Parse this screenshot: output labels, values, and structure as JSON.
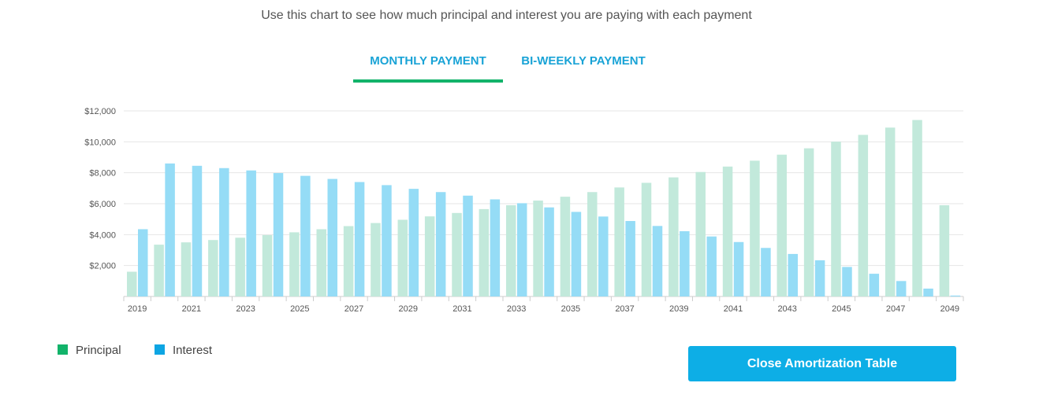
{
  "intro_text": "Use this chart to see how much principal and interest you are paying with each payment",
  "tabs": [
    {
      "label": "MONTHLY PAYMENT",
      "active": true
    },
    {
      "label": "BI-WEEKLY PAYMENT",
      "active": false
    }
  ],
  "legend": [
    {
      "label": "Principal",
      "color": "#12b36a"
    },
    {
      "label": "Interest",
      "color": "#0da5e3"
    }
  ],
  "close_button": "Close Amortization Table",
  "colors": {
    "principal_bar": "#c2e9db",
    "interest_bar": "#95dcf6",
    "accent": "#12b36a",
    "tab_text": "#19a3d6"
  },
  "chart_data": {
    "type": "bar",
    "categories": [
      "2019",
      "2020",
      "2021",
      "2022",
      "2023",
      "2024",
      "2025",
      "2026",
      "2027",
      "2028",
      "2029",
      "2030",
      "2031",
      "2032",
      "2033",
      "2034",
      "2035",
      "2036",
      "2037",
      "2038",
      "2039",
      "2040",
      "2041",
      "2042",
      "2043",
      "2044",
      "2045",
      "2046",
      "2047",
      "2048",
      "2049"
    ],
    "tick_labels": [
      "2019",
      "2021",
      "2023",
      "2025",
      "2027",
      "2029",
      "2031",
      "2033",
      "2035",
      "2037",
      "2039",
      "2041",
      "2043",
      "2045",
      "2047",
      "2049"
    ],
    "series": [
      {
        "name": "Principal",
        "values": [
          1600,
          3350,
          3500,
          3650,
          3800,
          3970,
          4150,
          4350,
          4550,
          4750,
          4960,
          5180,
          5400,
          5650,
          5900,
          6200,
          6450,
          6750,
          7050,
          7350,
          7700,
          8050,
          8400,
          8780,
          9170,
          9580,
          10010,
          10450,
          10920,
          11410,
          5900
        ]
      },
      {
        "name": "Interest",
        "values": [
          4350,
          8600,
          8450,
          8300,
          8150,
          7980,
          7800,
          7600,
          7400,
          7200,
          6960,
          6750,
          6520,
          6280,
          6030,
          5760,
          5470,
          5170,
          4880,
          4560,
          4220,
          3880,
          3520,
          3140,
          2750,
          2340,
          1910,
          1470,
          1000,
          510,
          60
        ]
      }
    ],
    "ytick_labels": [
      "$2,000",
      "$4,000",
      "$6,000",
      "$8,000",
      "$10,000",
      "$12,000"
    ],
    "ylim": [
      0,
      12000
    ],
    "grid": true,
    "legend_position": "bottom-left"
  }
}
